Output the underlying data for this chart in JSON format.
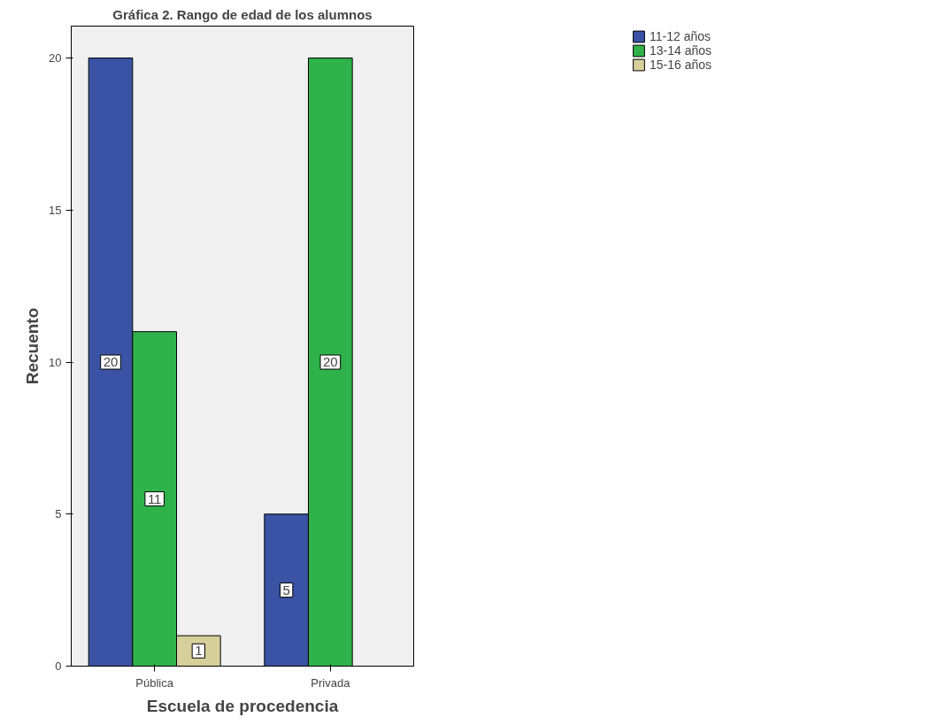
{
  "chart_data": {
    "type": "bar",
    "title": "Gráfica 2. Rango de edad de los alumnos",
    "xlabel": "Escuela de procedencia",
    "ylabel": "Recuento",
    "categories": [
      "Pública",
      "Privada"
    ],
    "series": [
      {
        "name": "11-12 años",
        "color": "#3a53a4",
        "values": [
          20,
          5
        ]
      },
      {
        "name": "13-14 años",
        "color": "#2fb24a",
        "values": [
          11,
          20
        ]
      },
      {
        "name": "15-16 años",
        "color": "#d6cf9b",
        "values": [
          1,
          null
        ]
      }
    ],
    "ylim": [
      0,
      21.05
    ],
    "yticks": [
      0,
      5,
      10,
      15,
      20
    ],
    "grid": false,
    "legend": "top right",
    "data_labels": true
  }
}
